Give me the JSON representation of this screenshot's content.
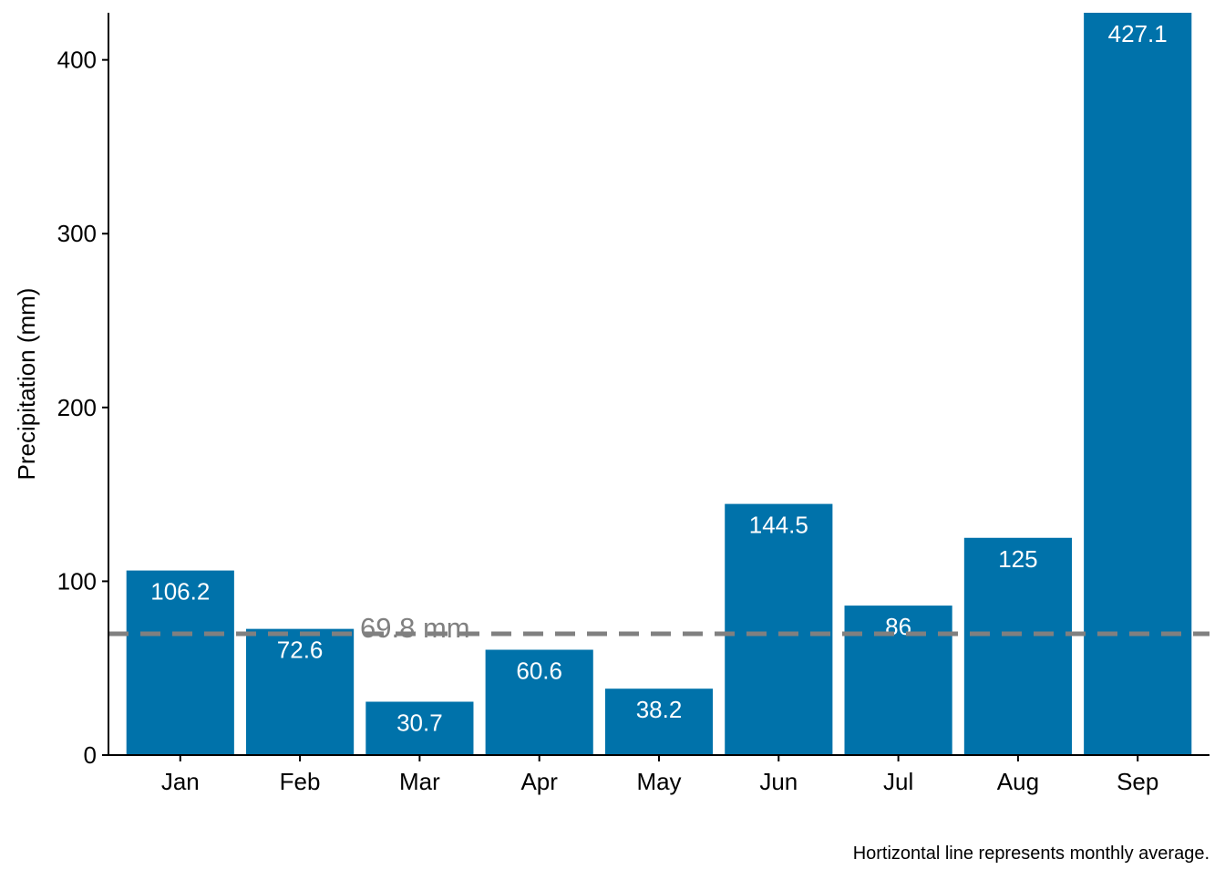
{
  "chart_data": {
    "type": "bar",
    "categories": [
      "Jan",
      "Feb",
      "Mar",
      "Apr",
      "May",
      "Jun",
      "Jul",
      "Aug",
      "Sep"
    ],
    "values": [
      106.2,
      72.6,
      30.7,
      60.6,
      38.2,
      144.5,
      86,
      125,
      427.1
    ],
    "value_labels": [
      "106.2",
      "72.6",
      "30.7",
      "60.6",
      "38.2",
      "144.5",
      "86",
      "125",
      "427.1"
    ],
    "title": "",
    "xlabel": "",
    "ylabel": "Precipitation (mm)",
    "ylim": [
      0,
      427.1
    ],
    "yticks": [
      0,
      100,
      200,
      300,
      400
    ],
    "ytick_labels": [
      "0",
      "100",
      "200",
      "300",
      "400"
    ],
    "reference_line": {
      "value": 69.8,
      "label": "69.8 mm",
      "style": "dashed",
      "color": "#808080"
    },
    "caption": "Hortizontal line represents monthly average.",
    "grid": false,
    "legend": "none",
    "colors": {
      "bar": "#0072AA",
      "bar_label": "#ffffff",
      "axis": "#000000",
      "average_line": "#808080"
    }
  }
}
